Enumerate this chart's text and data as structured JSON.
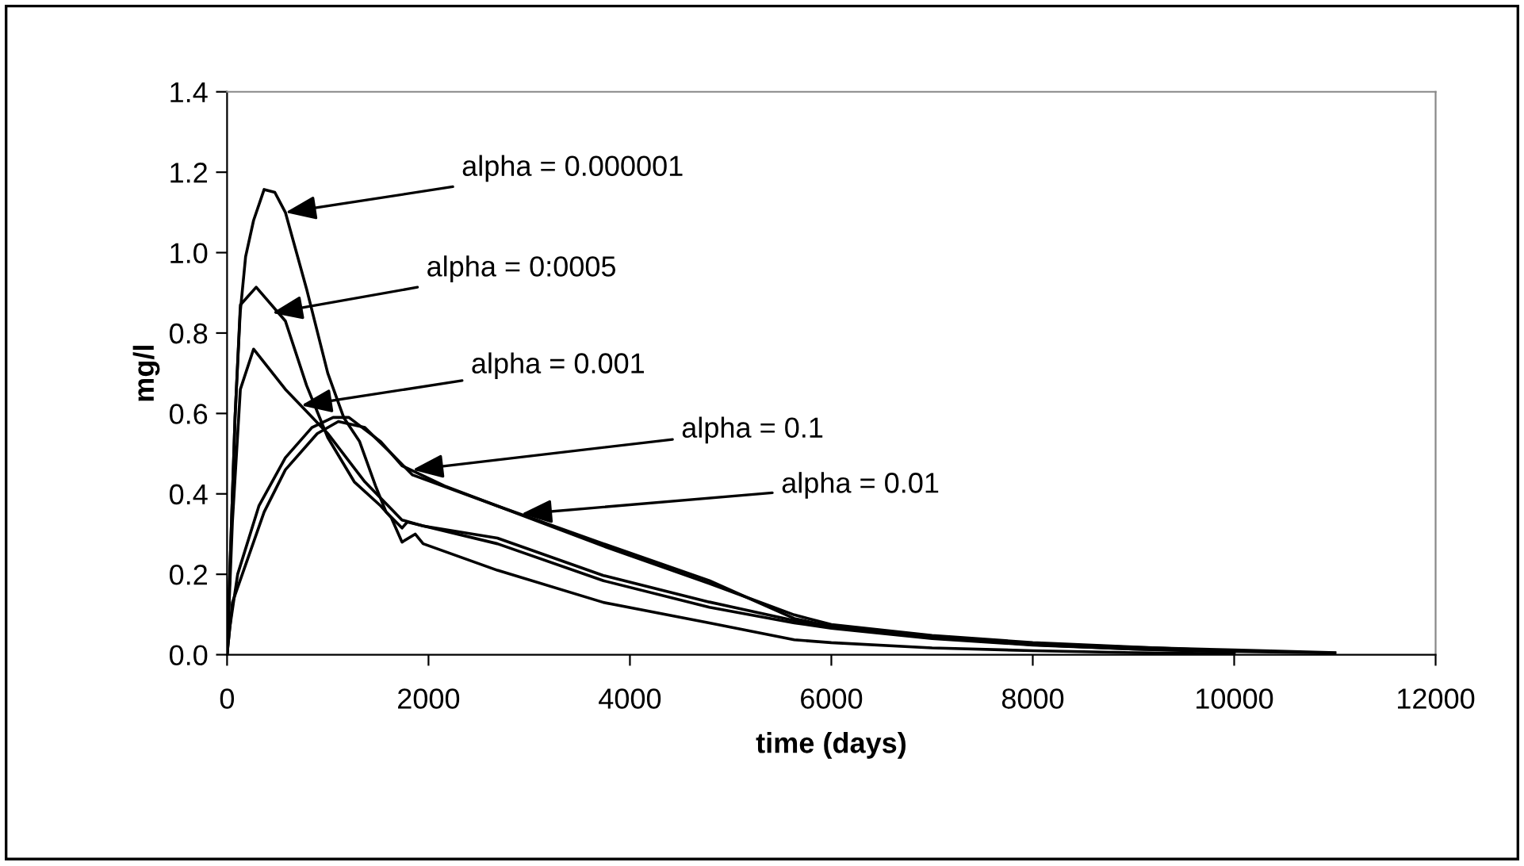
{
  "chart_data": {
    "type": "line",
    "xlabel": "time (days)",
    "ylabel": "mg/l",
    "xlim": [
      0,
      12000
    ],
    "xticks": [
      0,
      2000,
      4000,
      6000,
      8000,
      10000,
      12000
    ],
    "ylim": [
      0.0,
      1.4
    ],
    "yticks": [
      {
        "value": 0,
        "label": "0.0"
      },
      0.2,
      0.4,
      0.6,
      0.8,
      {
        "value": 1,
        "label": "1.0"
      },
      1.2,
      1.4
    ],
    "grid": false,
    "legend": false,
    "marker": "none",
    "line_style": "solid",
    "series": [
      {
        "color": "#000000",
        "x": [
          0,
          40,
          79,
          130,
          184,
          263,
          368,
          474,
          579,
          789,
          1000,
          1158,
          1316,
          1474,
          1579,
          1737,
          1789,
          2684,
          3737,
          4789,
          5632,
          6000,
          7000,
          8000,
          9000,
          10000,
          11000
        ],
        "values": [
          0.0,
          0.3,
          0.59,
          0.85,
          0.99,
          1.08,
          1.157,
          1.15,
          1.1,
          0.91,
          0.7,
          0.59,
          0.53,
          0.42,
          0.355,
          0.315,
          0.33,
          0.276,
          0.184,
          0.118,
          0.079,
          0.066,
          0.04,
          0.024,
          0.014,
          0.008,
          0.004
        ]
      },
      {
        "color": "#000000",
        "x": [
          0,
          40,
          79,
          132,
          289,
          579,
          789,
          1000,
          1263,
          1526,
          1632,
          1737,
          1868,
          1947,
          2684,
          3737,
          4789,
          5632,
          6000,
          7000,
          8000,
          9000,
          10000
        ],
        "values": [
          0.0,
          0.3,
          0.59,
          0.87,
          0.914,
          0.83,
          0.67,
          0.54,
          0.43,
          0.37,
          0.34,
          0.28,
          0.3,
          0.276,
          0.21,
          0.13,
          0.079,
          0.037,
          0.03,
          0.017,
          0.01,
          0.005,
          0.002
        ]
      },
      {
        "color": "#000000",
        "x": [
          0,
          53,
          132,
          263,
          579,
          1000,
          1368,
          1737,
          1947,
          2684,
          3737,
          4789,
          5632,
          6000,
          7000,
          8000,
          9000,
          10000
        ],
        "values": [
          0.0,
          0.33,
          0.66,
          0.76,
          0.66,
          0.55,
          0.43,
          0.335,
          0.32,
          0.29,
          0.197,
          0.131,
          0.085,
          0.07,
          0.042,
          0.025,
          0.014,
          0.007
        ]
      },
      {
        "color": "#000000",
        "x": [
          0,
          26,
          105,
          316,
          579,
          842,
          1053,
          1210,
          1526,
          1737,
          2158,
          2684,
          3737,
          4789,
          5632,
          6000,
          7000,
          8000,
          9000,
          10000,
          11000
        ],
        "values": [
          0.0,
          0.066,
          0.2,
          0.37,
          0.49,
          0.565,
          0.59,
          0.59,
          0.53,
          0.47,
          0.42,
          0.37,
          0.276,
          0.184,
          0.09,
          0.07,
          0.045,
          0.028,
          0.018,
          0.012,
          0.005
        ]
      },
      {
        "color": "#000000",
        "x": [
          0,
          53,
          368,
          579,
          895,
          1105,
          1368,
          1632,
          1842,
          2684,
          3737,
          4789,
          5632,
          6000,
          7000,
          8000,
          9000,
          10000
        ],
        "values": [
          0.0,
          0.13,
          0.355,
          0.46,
          0.55,
          0.58,
          0.565,
          0.5,
          0.447,
          0.37,
          0.27,
          0.177,
          0.099,
          0.075,
          0.048,
          0.03,
          0.019,
          0.009
        ]
      }
    ],
    "annotations": [
      {
        "text": "alpha = 0.000001",
        "x": 579,
        "y": 1.1
      },
      {
        "text": "alpha = 0:0005",
        "x": 447,
        "y": 0.85
      },
      {
        "text": "alpha = 0.001",
        "x": 737,
        "y": 0.62
      },
      {
        "text": "alpha = 0.1",
        "x": 1842,
        "y": 0.46
      },
      {
        "text": "alpha = 0.01",
        "x": 2921,
        "y": 0.35
      }
    ]
  }
}
